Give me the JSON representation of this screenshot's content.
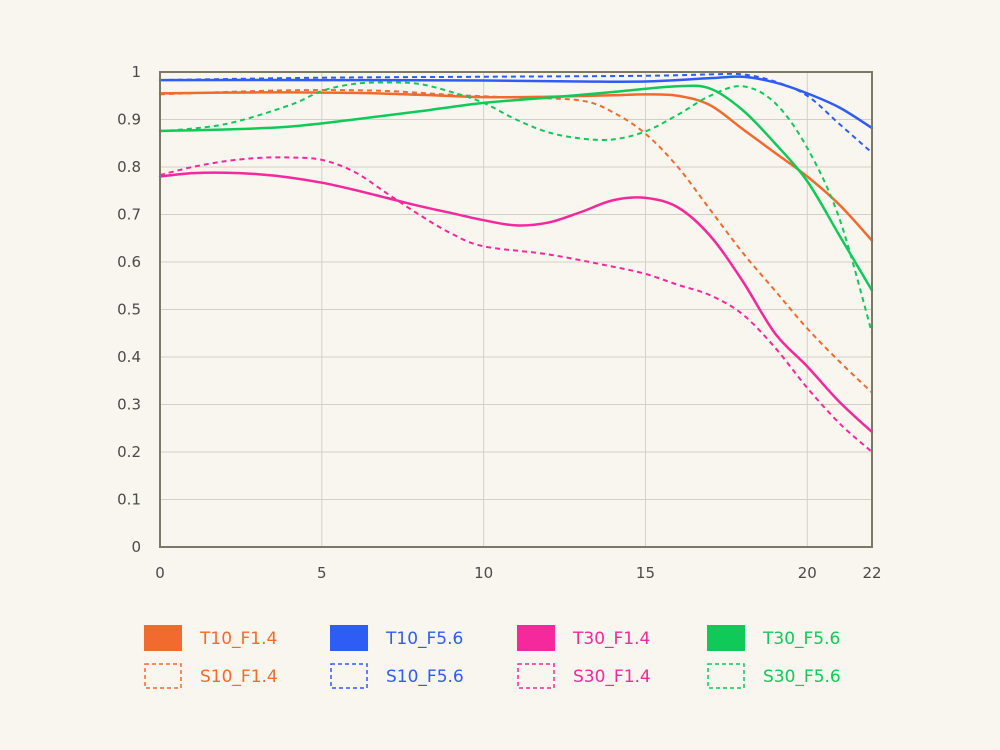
{
  "chart_data": {
    "type": "line",
    "title": "",
    "xlabel": "",
    "ylabel": "",
    "xlim": [
      0,
      22
    ],
    "ylim": [
      0,
      1
    ],
    "x_ticks": [
      "0",
      "5",
      "10",
      "15",
      "20",
      "22"
    ],
    "y_ticks": [
      "0",
      "0.1",
      "0.2",
      "0.3",
      "0.4",
      "0.5",
      "0.6",
      "0.7",
      "0.8",
      "0.9",
      "1"
    ],
    "grid": true,
    "legend_position": "bottom",
    "series": [
      {
        "name": "T10_F1.4",
        "color": "#f26b2e",
        "dashed": false,
        "points": [
          [
            0,
            0.955
          ],
          [
            3,
            0.957
          ],
          [
            6,
            0.956
          ],
          [
            8,
            0.952
          ],
          [
            10,
            0.947
          ],
          [
            12,
            0.948
          ],
          [
            14,
            0.951
          ],
          [
            15,
            0.953
          ],
          [
            16,
            0.95
          ],
          [
            17,
            0.93
          ],
          [
            18,
            0.88
          ],
          [
            19,
            0.83
          ],
          [
            20,
            0.78
          ],
          [
            21,
            0.72
          ],
          [
            22,
            0.645
          ]
        ]
      },
      {
        "name": "S10_F1.4",
        "color": "#f26b2e",
        "dashed": true,
        "points": [
          [
            0,
            0.953
          ],
          [
            3,
            0.96
          ],
          [
            5,
            0.962
          ],
          [
            7,
            0.96
          ],
          [
            9,
            0.952
          ],
          [
            11,
            0.946
          ],
          [
            13,
            0.94
          ],
          [
            14,
            0.915
          ],
          [
            15,
            0.87
          ],
          [
            16,
            0.8
          ],
          [
            17,
            0.71
          ],
          [
            18,
            0.62
          ],
          [
            19,
            0.54
          ],
          [
            20,
            0.46
          ],
          [
            21,
            0.39
          ],
          [
            22,
            0.325
          ]
        ]
      },
      {
        "name": "T10_F5.6",
        "color": "#2e5df5",
        "dashed": false,
        "points": [
          [
            0,
            0.983
          ],
          [
            5,
            0.983
          ],
          [
            10,
            0.982
          ],
          [
            13,
            0.98
          ],
          [
            15,
            0.98
          ],
          [
            17,
            0.987
          ],
          [
            18,
            0.99
          ],
          [
            19,
            0.978
          ],
          [
            20,
            0.955
          ],
          [
            21,
            0.925
          ],
          [
            22,
            0.882
          ]
        ]
      },
      {
        "name": "S10_F5.6",
        "color": "#2e5df5",
        "dashed": true,
        "points": [
          [
            0,
            0.983
          ],
          [
            5,
            0.988
          ],
          [
            10,
            0.99
          ],
          [
            15,
            0.992
          ],
          [
            17,
            0.995
          ],
          [
            18,
            0.995
          ],
          [
            19,
            0.98
          ],
          [
            20,
            0.95
          ],
          [
            21,
            0.89
          ],
          [
            22,
            0.83
          ]
        ]
      },
      {
        "name": "T30_F1.4",
        "color": "#f5289c",
        "dashed": false,
        "points": [
          [
            0,
            0.78
          ],
          [
            1,
            0.787
          ],
          [
            2,
            0.788
          ],
          [
            3,
            0.785
          ],
          [
            4,
            0.778
          ],
          [
            5,
            0.767
          ],
          [
            6,
            0.752
          ],
          [
            7,
            0.735
          ],
          [
            8,
            0.718
          ],
          [
            9,
            0.703
          ],
          [
            10,
            0.688
          ],
          [
            11,
            0.677
          ],
          [
            12,
            0.683
          ],
          [
            13,
            0.705
          ],
          [
            14,
            0.73
          ],
          [
            15,
            0.735
          ],
          [
            16,
            0.715
          ],
          [
            17,
            0.655
          ],
          [
            18,
            0.56
          ],
          [
            19,
            0.45
          ],
          [
            20,
            0.38
          ],
          [
            21,
            0.305
          ],
          [
            22,
            0.242
          ]
        ]
      },
      {
        "name": "S30_F1.4",
        "color": "#f5289c",
        "dashed": true,
        "points": [
          [
            0,
            0.783
          ],
          [
            1,
            0.8
          ],
          [
            2,
            0.812
          ],
          [
            3,
            0.819
          ],
          [
            4,
            0.82
          ],
          [
            5,
            0.815
          ],
          [
            6,
            0.79
          ],
          [
            7,
            0.745
          ],
          [
            8,
            0.7
          ],
          [
            9,
            0.66
          ],
          [
            10,
            0.633
          ],
          [
            12,
            0.616
          ],
          [
            14,
            0.59
          ],
          [
            15,
            0.575
          ],
          [
            16,
            0.552
          ],
          [
            17,
            0.53
          ],
          [
            18,
            0.49
          ],
          [
            19,
            0.42
          ],
          [
            20,
            0.335
          ],
          [
            21,
            0.26
          ],
          [
            22,
            0.2
          ]
        ]
      },
      {
        "name": "T30_F5.6",
        "color": "#0fca58",
        "dashed": false,
        "points": [
          [
            0,
            0.876
          ],
          [
            2,
            0.879
          ],
          [
            4,
            0.885
          ],
          [
            6,
            0.9
          ],
          [
            8,
            0.917
          ],
          [
            10,
            0.935
          ],
          [
            12,
            0.946
          ],
          [
            14,
            0.958
          ],
          [
            16,
            0.97
          ],
          [
            17,
            0.965
          ],
          [
            18,
            0.92
          ],
          [
            19,
            0.85
          ],
          [
            20,
            0.77
          ],
          [
            21,
            0.655
          ],
          [
            22,
            0.54
          ]
        ]
      },
      {
        "name": "S30_F5.6",
        "color": "#0fca58",
        "dashed": true,
        "points": [
          [
            0,
            0.875
          ],
          [
            2,
            0.89
          ],
          [
            4,
            0.93
          ],
          [
            5,
            0.96
          ],
          [
            6,
            0.975
          ],
          [
            7,
            0.978
          ],
          [
            8,
            0.975
          ],
          [
            9,
            0.958
          ],
          [
            10,
            0.935
          ],
          [
            11,
            0.9
          ],
          [
            12,
            0.873
          ],
          [
            13,
            0.86
          ],
          [
            14,
            0.858
          ],
          [
            15,
            0.875
          ],
          [
            16,
            0.91
          ],
          [
            17,
            0.95
          ],
          [
            18,
            0.97
          ],
          [
            19,
            0.935
          ],
          [
            20,
            0.84
          ],
          [
            21,
            0.69
          ],
          [
            22,
            0.45
          ]
        ]
      }
    ]
  }
}
